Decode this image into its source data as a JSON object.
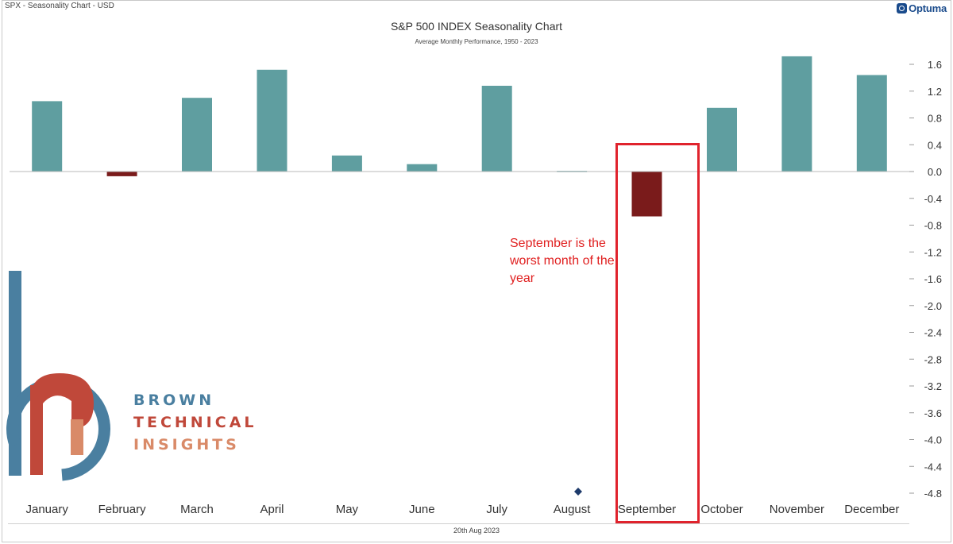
{
  "header": {
    "chart_source": "SPX - Seasonality Chart - USD",
    "brand": "Optuma"
  },
  "chart_data": {
    "type": "bar",
    "title": "S&P 500 INDEX Seasonality Chart",
    "subtitle": "Average Monthly Performance, 1950 - 2023",
    "categories": [
      "January",
      "February",
      "March",
      "April",
      "May",
      "June",
      "July",
      "August",
      "September",
      "October",
      "November",
      "December"
    ],
    "values": [
      1.05,
      -0.07,
      1.1,
      1.52,
      0.24,
      0.11,
      1.28,
      0.01,
      -0.67,
      0.95,
      1.72,
      1.44
    ],
    "ylim": [
      -4.8,
      1.6
    ],
    "yticks": [
      "1.6",
      "1.2",
      "0.8",
      "0.4",
      "0.0",
      "-0.4",
      "-0.8",
      "-1.2",
      "-1.6",
      "-2.0",
      "-2.4",
      "-2.8",
      "-3.2",
      "-3.6",
      "-4.0",
      "-4.4",
      "-4.8"
    ],
    "xlabel": "",
    "ylabel": "",
    "colors": {
      "positive": "#5f9ea0",
      "negative": "#7a1b1b"
    },
    "annotation": {
      "text": "September is the worst month of the year",
      "color": "#e02020",
      "highlighted_category": "September"
    }
  },
  "footer": {
    "date": "20th Aug 2023"
  },
  "logo": {
    "line1": "BROWN",
    "line2": "TECHNICAL",
    "line3": "INSIGHTS",
    "colors": {
      "blue": "#4a7fa0",
      "red": "#c0483a",
      "peach": "#d98a68"
    }
  }
}
